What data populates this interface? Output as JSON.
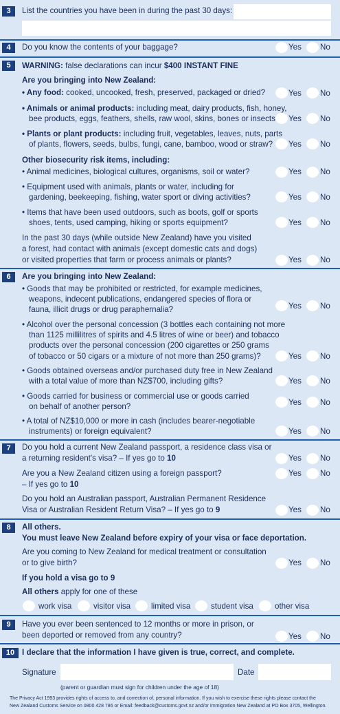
{
  "yes": "Yes",
  "no": "No",
  "s3": {
    "num": "3",
    "text": "List the countries you have been in during the past 30 days:"
  },
  "s4": {
    "num": "4",
    "text": "Do you know the contents of your baggage?"
  },
  "s5": {
    "num": "5",
    "warn_pre": "WARNING:",
    "warn_mid": " false declarations can incur ",
    "warn_fine": "$400 INSTANT FINE",
    "q_heading": "Are you bringing into New Zealand:",
    "food_bold": "• Any food:",
    "food_rest": " cooked, uncooked, fresh, preserved, packaged or dried?",
    "animals_bold": "• Animals or animal products:",
    "animals_rest1": " including meat, dairy products, fish, honey,",
    "animals_line2": "bee products, eggs, feathers, shells, raw wool, skins, bones or insects?",
    "plants_bold": "• Plants or plant products:",
    "plants_rest1": " including fruit, vegetables, leaves, nuts, parts",
    "plants_line2": "of plants, flowers, seeds, bulbs, fungi, cane, bamboo, wood or straw?",
    "other_heading": "Other biosecurity risk items, including:",
    "med": "• Animal medicines, biological cultures, organisms, soil or water?",
    "equip1": "• Equipment used with animals, plants or water, including for",
    "equip2": "gardening, beekeeping, fishing, water sport or diving activities?",
    "outdoor1": "• Items that have been used outdoors, such as boots, golf or sports",
    "outdoor2": "shoes, tents, used camping, hiking or sports equipment?",
    "past1": "In the past 30 days (while outside New Zealand) have you visited",
    "past2": "a forest, had contact with animals (except domestic cats and dogs)",
    "past3": "or visited properties that farm or process animals or plants?"
  },
  "s6": {
    "num": "6",
    "heading": "Are you bringing into New Zealand:",
    "goods1": "• Goods that may be prohibited or restricted, for example medicines,",
    "goods2": "weapons, indecent publications, endangered species of flora or",
    "goods3": "fauna, illicit drugs or drug paraphernalia?",
    "alc1": "• Alcohol over the personal concession (3 bottles each containing not more",
    "alc2": "than 1125 millilitres of spirits and 4.5 litres of wine or beer) and tobacco",
    "alc3": "products over the personal concession (200 cigarettes or 250 grams",
    "alc4": "of tobacco or 50 cigars or a mixture of not more than 250 grams)?",
    "duty1": "• Goods obtained overseas and/or purchased duty free in New Zealand",
    "duty2": "with a total value of more than NZ$700, including gifts?",
    "biz1": "• Goods carried for business or commercial use or goods carried",
    "biz2": "on behalf of another person?",
    "cash1": "• A total of NZ$10,000 or more in cash (includes bearer-negotiable",
    "cash2": "instruments) or foreign equivalent?"
  },
  "s7": {
    "num": "7",
    "nzpp1": "Do you hold a current New Zealand passport, a residence class visa or",
    "nzpp2_pre": "a returning resident's visa? – If yes go to ",
    "nzpp2_go": "10",
    "citz1": "Are you a New Zealand citizen using a foreign passport?",
    "citz2_pre": "– If yes go to ",
    "citz2_go": "10",
    "aus1": "Do you hold an Australian passport, Australian Permanent Residence",
    "aus2_pre": "Visa or Australian Resident Return Visa? – If yes go to ",
    "aus2_go": "9"
  },
  "s8": {
    "num": "8",
    "heading1": "All others.",
    "heading2": "You must leave New Zealand before expiry of your visa or face deportation.",
    "med1": "Are you coming to New Zealand for medical treatment or consultation",
    "med2": "or to give birth?",
    "visa_go": "If you hold a visa go to 9",
    "apply_bold": "All others",
    "apply_rest": " apply for one of these",
    "visa_options": [
      "work visa",
      "visitor visa",
      "limited visa",
      "student visa",
      "other visa"
    ]
  },
  "s9": {
    "num": "9",
    "q1": "Have you ever been sentenced to 12 months or more in prison, or",
    "q2": "been deported or removed from any country?"
  },
  "s10": {
    "num": "10",
    "declare": "I declare that the information I have given is true, correct, and complete.",
    "signature": "Signature",
    "date": "Date",
    "guardian": "(parent or guardian must sign for children under the age of 18)"
  },
  "privacy1": "The Privacy Act 1993 provides rights of access to, and correction of, personal information. If you wish to exercise these rights please contact the",
  "privacy2": "New Zealand Customs Service on 0800 428 786 or Email: feedback@customs.govt.nz and/or Immigration New Zealand at PO Box 3705, Wellington."
}
